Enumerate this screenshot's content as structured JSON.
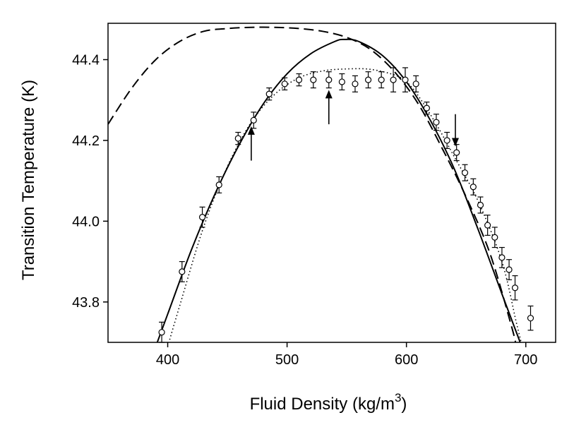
{
  "chart_data": {
    "type": "scatter",
    "xlabel": "Fluid Density (kg/m",
    "xlabel_superscript": "3",
    "xlabel_suffix": ")",
    "ylabel": "Transition Temperature (K)",
    "xlim": [
      350,
      725
    ],
    "ylim": [
      43.7,
      44.49
    ],
    "x_ticks": [
      400,
      500,
      600,
      700
    ],
    "y_ticks": [
      43.8,
      44.0,
      44.2,
      44.4
    ],
    "x_tick_labels": [
      "400",
      "500",
      "600",
      "700"
    ],
    "y_tick_labels": [
      "43.8",
      "44.0",
      "44.2",
      "44.4"
    ],
    "grid": false,
    "legend": "none",
    "points": [
      {
        "x": 395,
        "y": 43.725,
        "err": 0.025
      },
      {
        "x": 412,
        "y": 43.875,
        "err": 0.025
      },
      {
        "x": 429,
        "y": 44.01,
        "err": 0.025
      },
      {
        "x": 443,
        "y": 44.09,
        "err": 0.02
      },
      {
        "x": 459,
        "y": 44.205,
        "err": 0.015
      },
      {
        "x": 472,
        "y": 44.25,
        "err": 0.02
      },
      {
        "x": 485,
        "y": 44.315,
        "err": 0.015
      },
      {
        "x": 498,
        "y": 44.34,
        "err": 0.015
      },
      {
        "x": 510,
        "y": 44.35,
        "err": 0.015
      },
      {
        "x": 522,
        "y": 44.35,
        "err": 0.02
      },
      {
        "x": 535,
        "y": 44.35,
        "err": 0.02
      },
      {
        "x": 546,
        "y": 44.345,
        "err": 0.02
      },
      {
        "x": 557,
        "y": 44.34,
        "err": 0.02
      },
      {
        "x": 568,
        "y": 44.35,
        "err": 0.02
      },
      {
        "x": 579,
        "y": 44.35,
        "err": 0.02
      },
      {
        "x": 589,
        "y": 44.35,
        "err": 0.03
      },
      {
        "x": 599,
        "y": 44.35,
        "err": 0.03
      },
      {
        "x": 608,
        "y": 44.34,
        "err": 0.02
      },
      {
        "x": 617,
        "y": 44.28,
        "err": 0.015
      },
      {
        "x": 625,
        "y": 44.245,
        "err": 0.02
      },
      {
        "x": 634,
        "y": 44.2,
        "err": 0.02
      },
      {
        "x": 642,
        "y": 44.17,
        "err": 0.02
      },
      {
        "x": 649,
        "y": 44.12,
        "err": 0.02
      },
      {
        "x": 656,
        "y": 44.085,
        "err": 0.02
      },
      {
        "x": 662,
        "y": 44.04,
        "err": 0.02
      },
      {
        "x": 668,
        "y": 43.99,
        "err": 0.025
      },
      {
        "x": 674,
        "y": 43.96,
        "err": 0.025
      },
      {
        "x": 680,
        "y": 43.91,
        "err": 0.025
      },
      {
        "x": 686,
        "y": 43.88,
        "err": 0.025
      },
      {
        "x": 691,
        "y": 43.835,
        "err": 0.03
      },
      {
        "x": 704,
        "y": 43.76,
        "err": 0.03
      }
    ],
    "curves": {
      "solid": [
        [
          390,
          43.69
        ],
        [
          400,
          43.77
        ],
        [
          420,
          43.93
        ],
        [
          440,
          44.07
        ],
        [
          460,
          44.19
        ],
        [
          480,
          44.29
        ],
        [
          500,
          44.365
        ],
        [
          520,
          44.415
        ],
        [
          540,
          44.445
        ],
        [
          548,
          44.45
        ],
        [
          560,
          44.445
        ],
        [
          580,
          44.41
        ],
        [
          600,
          44.345
        ],
        [
          620,
          44.25
        ],
        [
          640,
          44.13
        ],
        [
          660,
          43.98
        ],
        [
          680,
          43.82
        ],
        [
          694,
          43.71
        ],
        [
          700,
          43.66
        ]
      ],
      "dashed": [
        [
          350,
          44.24
        ],
        [
          370,
          44.33
        ],
        [
          390,
          44.4
        ],
        [
          410,
          44.445
        ],
        [
          430,
          44.47
        ],
        [
          450,
          44.477
        ],
        [
          470,
          44.48
        ],
        [
          490,
          44.48
        ],
        [
          510,
          44.477
        ],
        [
          530,
          44.47
        ],
        [
          550,
          44.455
        ],
        [
          570,
          44.425
        ],
        [
          590,
          44.37
        ],
        [
          610,
          44.29
        ],
        [
          630,
          44.18
        ],
        [
          650,
          44.06
        ],
        [
          670,
          43.92
        ],
        [
          688,
          43.74
        ],
        [
          692,
          43.69
        ]
      ],
      "dotted": [
        [
          400,
          43.69
        ],
        [
          410,
          43.79
        ],
        [
          430,
          43.985
        ],
        [
          450,
          44.135
        ],
        [
          470,
          44.245
        ],
        [
          490,
          44.315
        ],
        [
          510,
          44.355
        ],
        [
          530,
          44.372
        ],
        [
          550,
          44.377
        ],
        [
          570,
          44.376
        ],
        [
          590,
          44.362
        ],
        [
          600,
          44.345
        ],
        [
          610,
          44.31
        ],
        [
          625,
          44.24
        ],
        [
          640,
          44.16
        ],
        [
          660,
          44.05
        ],
        [
          680,
          43.9
        ],
        [
          692,
          43.75
        ],
        [
          697,
          43.69
        ]
      ]
    },
    "arrows": [
      {
        "x": 470,
        "direction": "up",
        "tip_y": 44.235,
        "tail_y": 44.15
      },
      {
        "x": 535,
        "direction": "up",
        "tip_y": 44.325,
        "tail_y": 44.24
      },
      {
        "x": 641,
        "direction": "down",
        "tip_y": 44.185,
        "tail_y": 44.265
      }
    ]
  }
}
